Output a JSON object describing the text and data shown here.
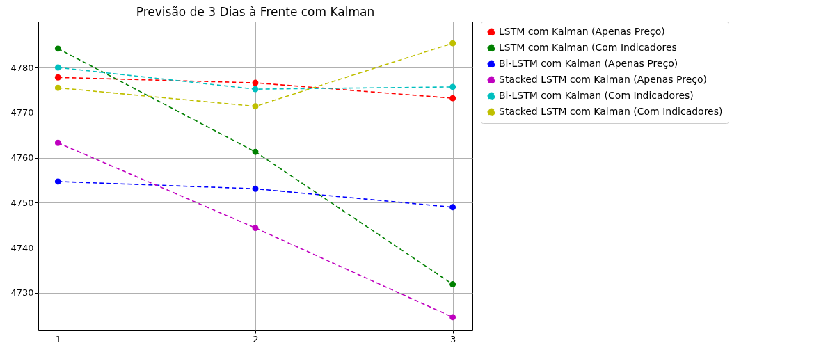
{
  "chart_data": {
    "type": "line",
    "title": "Previsão de 3 Dias à Frente com Kalman",
    "x": [
      1,
      2,
      3
    ],
    "xlim": [
      0.9,
      3.1
    ],
    "xticks": [
      1,
      2,
      3
    ],
    "ylim": [
      4721.8,
      4790.2
    ],
    "yticks": [
      4730,
      4740,
      4750,
      4760,
      4770,
      4780
    ],
    "grid": true,
    "legend": "right",
    "marker": "circle",
    "line_style": "dashed",
    "series": [
      {
        "name": "LSTM com Kalman (Apenas Preço)",
        "color": "#ff0000",
        "values": [
          4777.8,
          4776.6,
          4773.2
        ]
      },
      {
        "name": "LSTM com Kalman (Com Indicadores",
        "color": "#008000",
        "values": [
          4784.2,
          4761.3,
          4731.9
        ]
      },
      {
        "name": "Bi-LSTM com Kalman (Apenas Preço)",
        "color": "#0000ff",
        "values": [
          4754.7,
          4753.1,
          4749.0
        ]
      },
      {
        "name": "Stacked LSTM com Kalman (Apenas Preço)",
        "color": "#bf00bf",
        "values": [
          4763.3,
          4744.4,
          4724.6
        ]
      },
      {
        "name": "Bi-LSTM com Kalman (Com Indicadores)",
        "color": "#00bfbf",
        "values": [
          4780.0,
          4775.2,
          4775.7
        ]
      },
      {
        "name": "Stacked LSTM com Kalman (Com Indicadores)",
        "color": "#bfbf00",
        "values": [
          4775.5,
          4771.4,
          4785.4
        ]
      }
    ]
  }
}
